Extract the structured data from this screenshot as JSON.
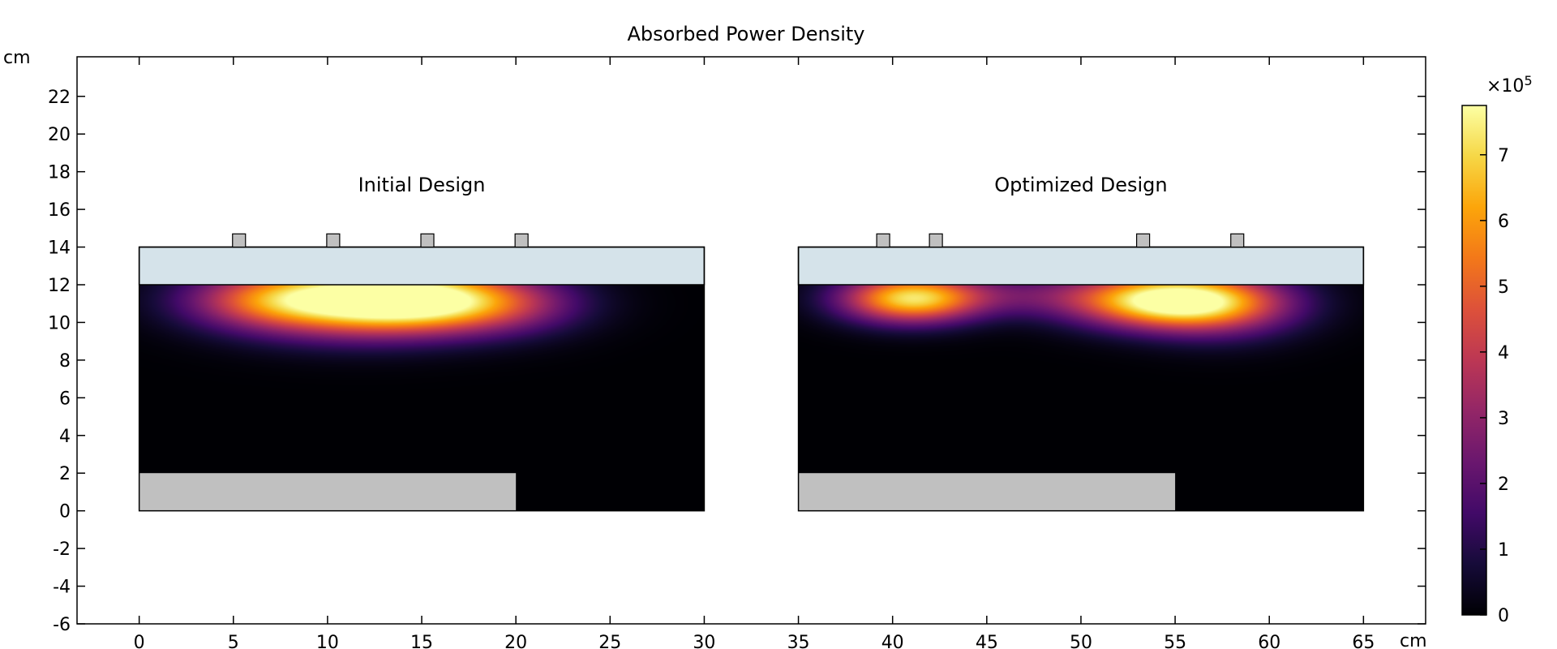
{
  "chart_data": {
    "type": "heatmap",
    "title": "Absorbed Power Density",
    "xlabel": "cm",
    "ylabel": "cm",
    "xlim": [
      -3.3,
      68.3
    ],
    "ylim": [
      -6,
      24.1
    ],
    "x_ticks": [
      0,
      5,
      10,
      15,
      20,
      25,
      30,
      35,
      40,
      45,
      50,
      55,
      60,
      65
    ],
    "y_ticks": [
      -6,
      -4,
      -2,
      0,
      2,
      4,
      6,
      8,
      10,
      12,
      14,
      16,
      18,
      20,
      22
    ],
    "colorbar": {
      "multiplier": "×10",
      "exponent": "5",
      "ticks": [
        0,
        1,
        2,
        3,
        4,
        5,
        6,
        7
      ],
      "min": 0,
      "max": 7.75,
      "colormap": "inferno"
    },
    "designs": [
      {
        "label": "Initial Design",
        "x_range": [
          0,
          30
        ],
        "cover_y": [
          12,
          14
        ],
        "antennas_x": [
          5.3,
          10.3,
          15.3,
          20.3
        ],
        "antenna_top": 14.7,
        "gray_block": {
          "x": [
            0,
            20
          ],
          "y": [
            0,
            2
          ]
        },
        "heat_sources": [
          {
            "x": 11.5,
            "y": 11.2,
            "sx": 4.5,
            "sy": 1.3,
            "amp": 0.98
          },
          {
            "x": 15.3,
            "y": 11.2,
            "sx": 3.2,
            "sy": 1.1,
            "amp": 0.45
          },
          {
            "x": 6.5,
            "y": 11.2,
            "sx": 3.0,
            "sy": 1.0,
            "amp": 0.3
          },
          {
            "x": 19.5,
            "y": 11.0,
            "sx": 3.0,
            "sy": 1.1,
            "amp": 0.32
          }
        ]
      },
      {
        "label": "Optimized Design",
        "x_range": [
          35,
          65
        ],
        "cover_y": [
          12,
          14
        ],
        "antennas_x": [
          39.5,
          42.3,
          53.3,
          58.3
        ],
        "antenna_top": 14.7,
        "gray_block": {
          "x": [
            35,
            55
          ],
          "y": [
            0,
            2
          ]
        },
        "heat_sources": [
          {
            "x": 41.0,
            "y": 11.3,
            "sx": 2.6,
            "sy": 0.9,
            "amp": 0.92
          },
          {
            "x": 54.5,
            "y": 11.2,
            "sx": 3.5,
            "sy": 1.0,
            "amp": 1.0
          },
          {
            "x": 57.5,
            "y": 10.8,
            "sx": 3.0,
            "sy": 1.2,
            "amp": 0.32
          },
          {
            "x": 47.0,
            "y": 11.5,
            "sx": 3.0,
            "sy": 0.8,
            "amp": 0.18
          }
        ]
      }
    ],
    "colors": {
      "cover": "#d5e3ea",
      "gray_block": "#c0c0c0",
      "antenna": "#c0c0c0",
      "outline": "#000000"
    }
  }
}
